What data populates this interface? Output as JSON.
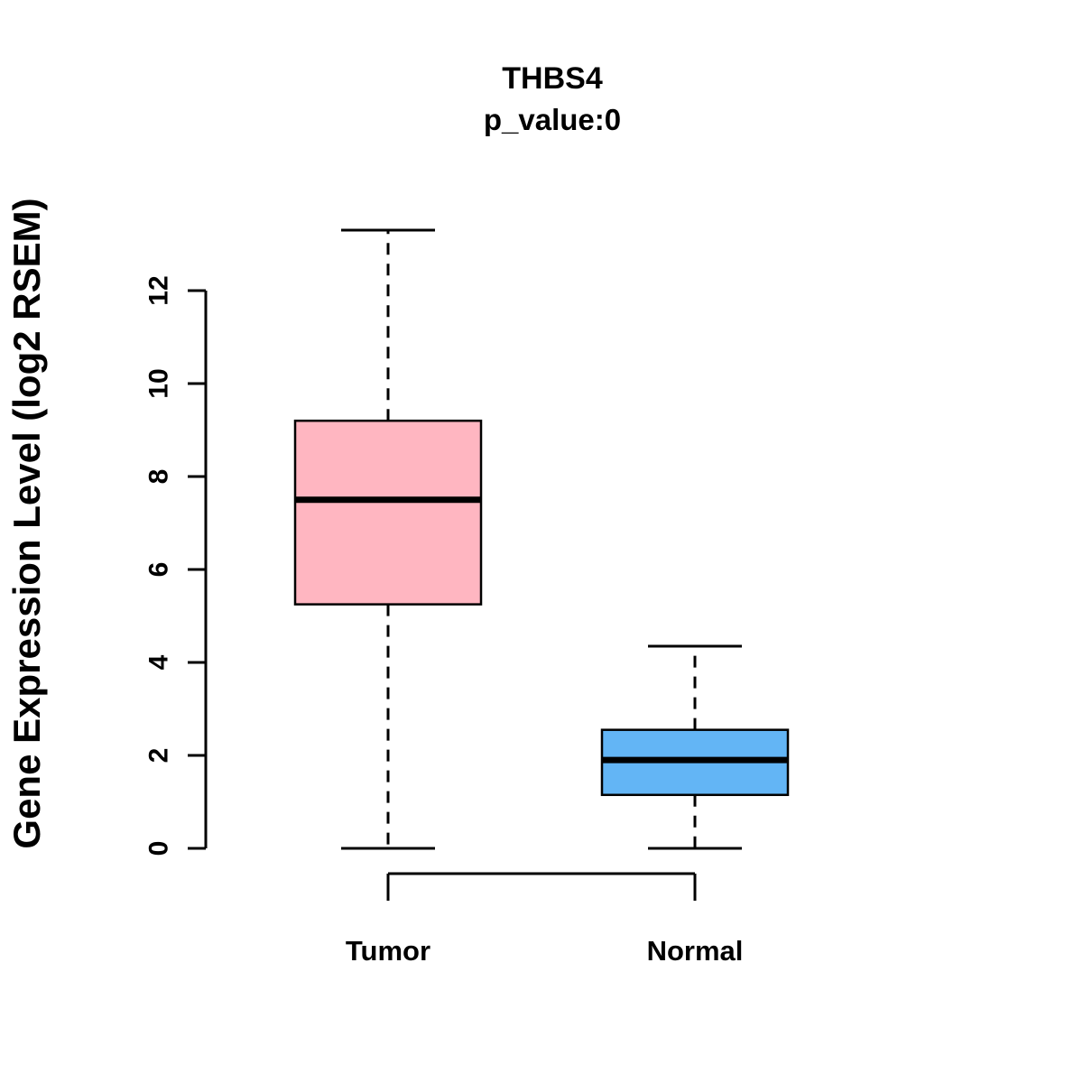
{
  "title": "THBS4",
  "subtitle": "p_value:0",
  "chart_data": {
    "type": "boxplot",
    "title": "THBS4",
    "subtitle": "p_value:0",
    "ylabel": "Gene Expression Level (log2 RSEM)",
    "xlabel": "",
    "categories": [
      "Tumor",
      "Normal"
    ],
    "yticks": [
      0,
      2,
      4,
      6,
      8,
      10,
      12
    ],
    "ylim": [
      0,
      13.3
    ],
    "grid": false,
    "legend": "none",
    "series": [
      {
        "name": "Tumor",
        "lower_whisker": 0,
        "q1": 5.25,
        "median": 7.5,
        "q3": 9.2,
        "upper_whisker": 13.3,
        "color": "#FFB6C1"
      },
      {
        "name": "Normal",
        "lower_whisker": 0,
        "q1": 1.15,
        "median": 1.9,
        "q3": 2.55,
        "upper_whisker": 4.35,
        "color": "#63B5F5"
      }
    ]
  }
}
